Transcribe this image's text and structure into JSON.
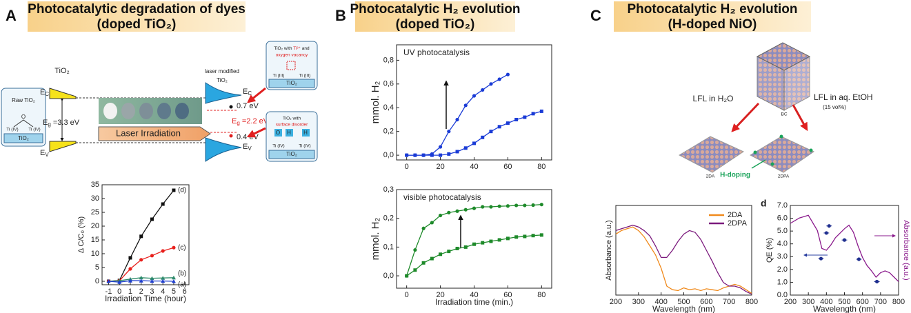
{
  "figure": {
    "panels": [
      {
        "letter": "A",
        "title": [
          "Photocatalytic degradation of dyes",
          "(doped TiO₂)"
        ]
      },
      {
        "letter": "B",
        "title": [
          "Photocatalytic H₂ evolution",
          "(doped TiO₂)"
        ]
      },
      {
        "letter": "C",
        "title": [
          "Photocatalytic H₂ evolution",
          "(H-doped NiO)"
        ]
      }
    ],
    "diagram_a": {
      "raw_label": "TiO₂",
      "modified_label": [
        "laser modified",
        "TiO₂"
      ],
      "raw_box": {
        "title": "Raw TiO₂",
        "atoms": [
          "O",
          "Ti (IV)",
          "Ti (IV)"
        ],
        "base": "TiO₂"
      },
      "ec_left": [
        "E",
        "C"
      ],
      "ev_left": [
        "E",
        "V"
      ],
      "eg_left": [
        "E",
        "g",
        " =3.3 eV"
      ],
      "ec_right": [
        "E",
        "C"
      ],
      "ev_right": [
        "E",
        "V"
      ],
      "eg_right": [
        "E",
        "g",
        " =2.2 eV"
      ],
      "gap_top": "0.7 eV",
      "gap_bottom": "0.4 eV",
      "laser": "Laser Irradiation",
      "callout_top": {
        "title": [
          "TiO₂ with ",
          "Ti³⁺",
          " and",
          "oxygen vacancy"
        ],
        "atoms": [
          "Ti (III)",
          "Ti (III)"
        ],
        "base": "TiO₂"
      },
      "callout_bottom": {
        "title": [
          "TiO₂ with",
          "surface disorder"
        ],
        "atoms": [
          "O",
          "H",
          "H",
          "Ti (IV)",
          "Ti (IV)"
        ],
        "base": "TiO₂"
      }
    },
    "diagram_c": {
      "left": "LFL in H₂O",
      "right": "LFL in aq. EtOH",
      "right_note": "(15 vol%)",
      "cube": "BC",
      "product_left": "2DA",
      "product_right": "2DPA",
      "doping": "H-doping"
    }
  },
  "chart_data": [
    {
      "type": "line",
      "x_label": "Irradiation Time (hour)",
      "y_label": "Δ C/C₀ (%)",
      "xlim": [
        -1.6,
        6.4
      ],
      "ylim": [
        -1.25,
        35
      ],
      "xticks": [
        -1,
        0,
        1,
        2,
        3,
        4,
        5,
        6
      ],
      "yticks": [
        0,
        5,
        10,
        15,
        20,
        25,
        30,
        35
      ],
      "series_labels_at_end": true,
      "series": [
        {
          "name": "(d)",
          "color": "#111111",
          "marker": "square",
          "x": [
            -1,
            0,
            1,
            2,
            3,
            4,
            5
          ],
          "values": [
            0,
            0.3,
            8.5,
            16.3,
            22.5,
            28,
            33
          ]
        },
        {
          "name": "(c)",
          "color": "#e8201c",
          "marker": "circle",
          "x": [
            -1,
            0,
            1,
            2,
            3,
            4,
            5
          ],
          "values": [
            0,
            0.2,
            4.5,
            7.8,
            9.3,
            11,
            12.2
          ]
        },
        {
          "name": "(b)",
          "color": "#2e8b6a",
          "marker": "triangle",
          "x": [
            -1,
            0,
            1,
            2,
            3,
            4,
            5
          ],
          "values": [
            0,
            0.2,
            0.8,
            1.3,
            1.1,
            1.2,
            1.3
          ]
        },
        {
          "name": "(a)",
          "color": "#1f3fcf",
          "marker": "triangle",
          "x": [
            -1,
            0,
            1,
            2,
            3,
            4,
            5
          ],
          "values": [
            0,
            -0.3,
            0.2,
            0.2,
            0.1,
            0.1,
            0
          ]
        }
      ]
    },
    {
      "type": "line",
      "annotation": "UV photocatalysis",
      "y_label": "mmol. H₂",
      "xlim": [
        -6,
        86
      ],
      "ylim": [
        -0.04,
        0.93
      ],
      "xticks": [
        0,
        20,
        40,
        60,
        80
      ],
      "yticks": [
        {
          "value": 0,
          "label": "0,0"
        },
        {
          "value": 0.2,
          "label": "0,2"
        },
        {
          "value": 0.4,
          "label": "0,4"
        },
        {
          "value": 0.6,
          "label": "0,6"
        },
        {
          "value": 0.8,
          "label": "0,8"
        }
      ],
      "series": [
        {
          "color": "#1a3bd6",
          "marker": "circle",
          "x": [
            0,
            5,
            10,
            15,
            20,
            25,
            30,
            35,
            40,
            45,
            50,
            55,
            60
          ],
          "values": [
            0,
            0,
            0,
            0.01,
            0.07,
            0.2,
            0.3,
            0.42,
            0.5,
            0.55,
            0.6,
            0.64,
            0.68
          ]
        },
        {
          "color": "#1a3bd6",
          "marker": "square",
          "x": [
            0,
            5,
            10,
            15,
            20,
            25,
            30,
            35,
            40,
            45,
            50,
            55,
            60,
            65,
            70,
            75,
            80
          ],
          "values": [
            0,
            0,
            0,
            0,
            0,
            0.01,
            0.03,
            0.06,
            0.1,
            0.15,
            0.2,
            0.24,
            0.27,
            0.3,
            0.32,
            0.35,
            0.37
          ]
        }
      ]
    },
    {
      "type": "line",
      "annotation": "visible photocatalysis",
      "x_label": "Irradiation time (min.)",
      "y_label": "mmol. H₂",
      "xlim": [
        -6,
        86
      ],
      "ylim": [
        -0.043,
        0.3
      ],
      "xticks": [
        0,
        20,
        40,
        60,
        80
      ],
      "yticks": [
        {
          "value": 0,
          "label": "0,0"
        },
        {
          "value": 0.1,
          "label": "0,1"
        },
        {
          "value": 0.2,
          "label": "0,2"
        },
        {
          "value": 0.3,
          "label": "0,3"
        }
      ],
      "series": [
        {
          "color": "#1e8a2a",
          "marker": "circle",
          "x": [
            0,
            5,
            10,
            15,
            20,
            25,
            30,
            35,
            40,
            45,
            50,
            55,
            60,
            65,
            70,
            75,
            80
          ],
          "values": [
            0,
            0.09,
            0.165,
            0.185,
            0.21,
            0.22,
            0.225,
            0.23,
            0.235,
            0.24,
            0.24,
            0.242,
            0.243,
            0.245,
            0.245,
            0.246,
            0.248
          ]
        },
        {
          "color": "#1e8a2a",
          "marker": "square",
          "x": [
            0,
            5,
            10,
            15,
            20,
            25,
            30,
            35,
            40,
            45,
            50,
            55,
            60,
            65,
            70,
            75,
            80
          ],
          "values": [
            0,
            0.02,
            0.045,
            0.06,
            0.075,
            0.085,
            0.095,
            0.1,
            0.11,
            0.115,
            0.12,
            0.125,
            0.13,
            0.135,
            0.137,
            0.14,
            0.142
          ]
        }
      ]
    },
    {
      "type": "line",
      "x_label": "Wavelength (nm)",
      "y_label": "Absorbance (a.u.)",
      "legend": "upper right",
      "xlim": [
        200,
        800
      ],
      "ylim": [
        0,
        1
      ],
      "xticks": [
        200,
        300,
        400,
        500,
        600,
        700,
        800
      ],
      "series": [
        {
          "name": "2DA",
          "color": "#f08a1c",
          "x": [
            200,
            225,
            250,
            275,
            300,
            325,
            350,
            375,
            400,
            425,
            450,
            475,
            500,
            525,
            550,
            575,
            600,
            625,
            650,
            675,
            700,
            725,
            750,
            775,
            800
          ],
          "values": [
            0.68,
            0.72,
            0.74,
            0.76,
            0.72,
            0.65,
            0.55,
            0.45,
            0.3,
            0.1,
            0.06,
            0.05,
            0.08,
            0.06,
            0.07,
            0.05,
            0.07,
            0.06,
            0.05,
            0.08,
            0.1,
            0.12,
            0.1,
            0.06,
            0.02
          ]
        },
        {
          "name": "2DPA",
          "color": "#7b1a7d",
          "x": [
            200,
            225,
            250,
            275,
            300,
            325,
            350,
            375,
            400,
            425,
            450,
            475,
            500,
            525,
            550,
            575,
            600,
            625,
            650,
            675,
            700,
            725,
            750,
            775,
            800
          ],
          "values": [
            0.72,
            0.74,
            0.76,
            0.78,
            0.76,
            0.72,
            0.66,
            0.55,
            0.42,
            0.42,
            0.5,
            0.6,
            0.68,
            0.72,
            0.7,
            0.62,
            0.5,
            0.38,
            0.25,
            0.14,
            0.1,
            0.1,
            0.08,
            0.04,
            0.01
          ]
        }
      ]
    },
    {
      "type": "scatter",
      "panel_label": "d",
      "x_label": "Wavelength (nm)",
      "y_label": "QE (%)",
      "y2_label": "Absorbance (a.u.)",
      "y2_color": "#8a1a8c",
      "xlim": [
        200,
        800
      ],
      "ylim": [
        0,
        7
      ],
      "y2lim": [
        0,
        1
      ],
      "xticks": [
        200,
        300,
        400,
        500,
        600,
        700,
        800
      ],
      "yticks": [
        {
          "value": 0,
          "label": "0.0"
        },
        {
          "value": 1,
          "label": "1.0"
        },
        {
          "value": 2,
          "label": "2.0"
        },
        {
          "value": 3,
          "label": "3.0"
        },
        {
          "value": 4,
          "label": "4.0"
        },
        {
          "value": 5,
          "label": "5.0"
        },
        {
          "value": 6,
          "label": "6.0"
        },
        {
          "value": 7,
          "label": "7.0"
        }
      ],
      "series": [
        {
          "color": "#1f2f8f",
          "marker": "circle",
          "no_line": true,
          "x": [
            370,
            400,
            415,
            500,
            580,
            680
          ],
          "values": [
            2.85,
            4.85,
            5.4,
            4.3,
            2.8,
            1.05
          ],
          "x_err": [
            15,
            15,
            15,
            15,
            15,
            15
          ]
        },
        {
          "color": "#8a1a8c",
          "axis": "y2",
          "x": [
            200,
            250,
            300,
            350,
            375,
            400,
            425,
            450,
            500,
            525,
            550,
            575,
            600,
            625,
            650,
            675,
            700,
            725,
            750,
            775,
            800
          ],
          "values": [
            0.8,
            0.86,
            0.89,
            0.72,
            0.52,
            0.5,
            0.56,
            0.64,
            0.74,
            0.78,
            0.7,
            0.55,
            0.42,
            0.33,
            0.27,
            0.2,
            0.25,
            0.27,
            0.25,
            0.2,
            0.15
          ]
        }
      ]
    }
  ]
}
